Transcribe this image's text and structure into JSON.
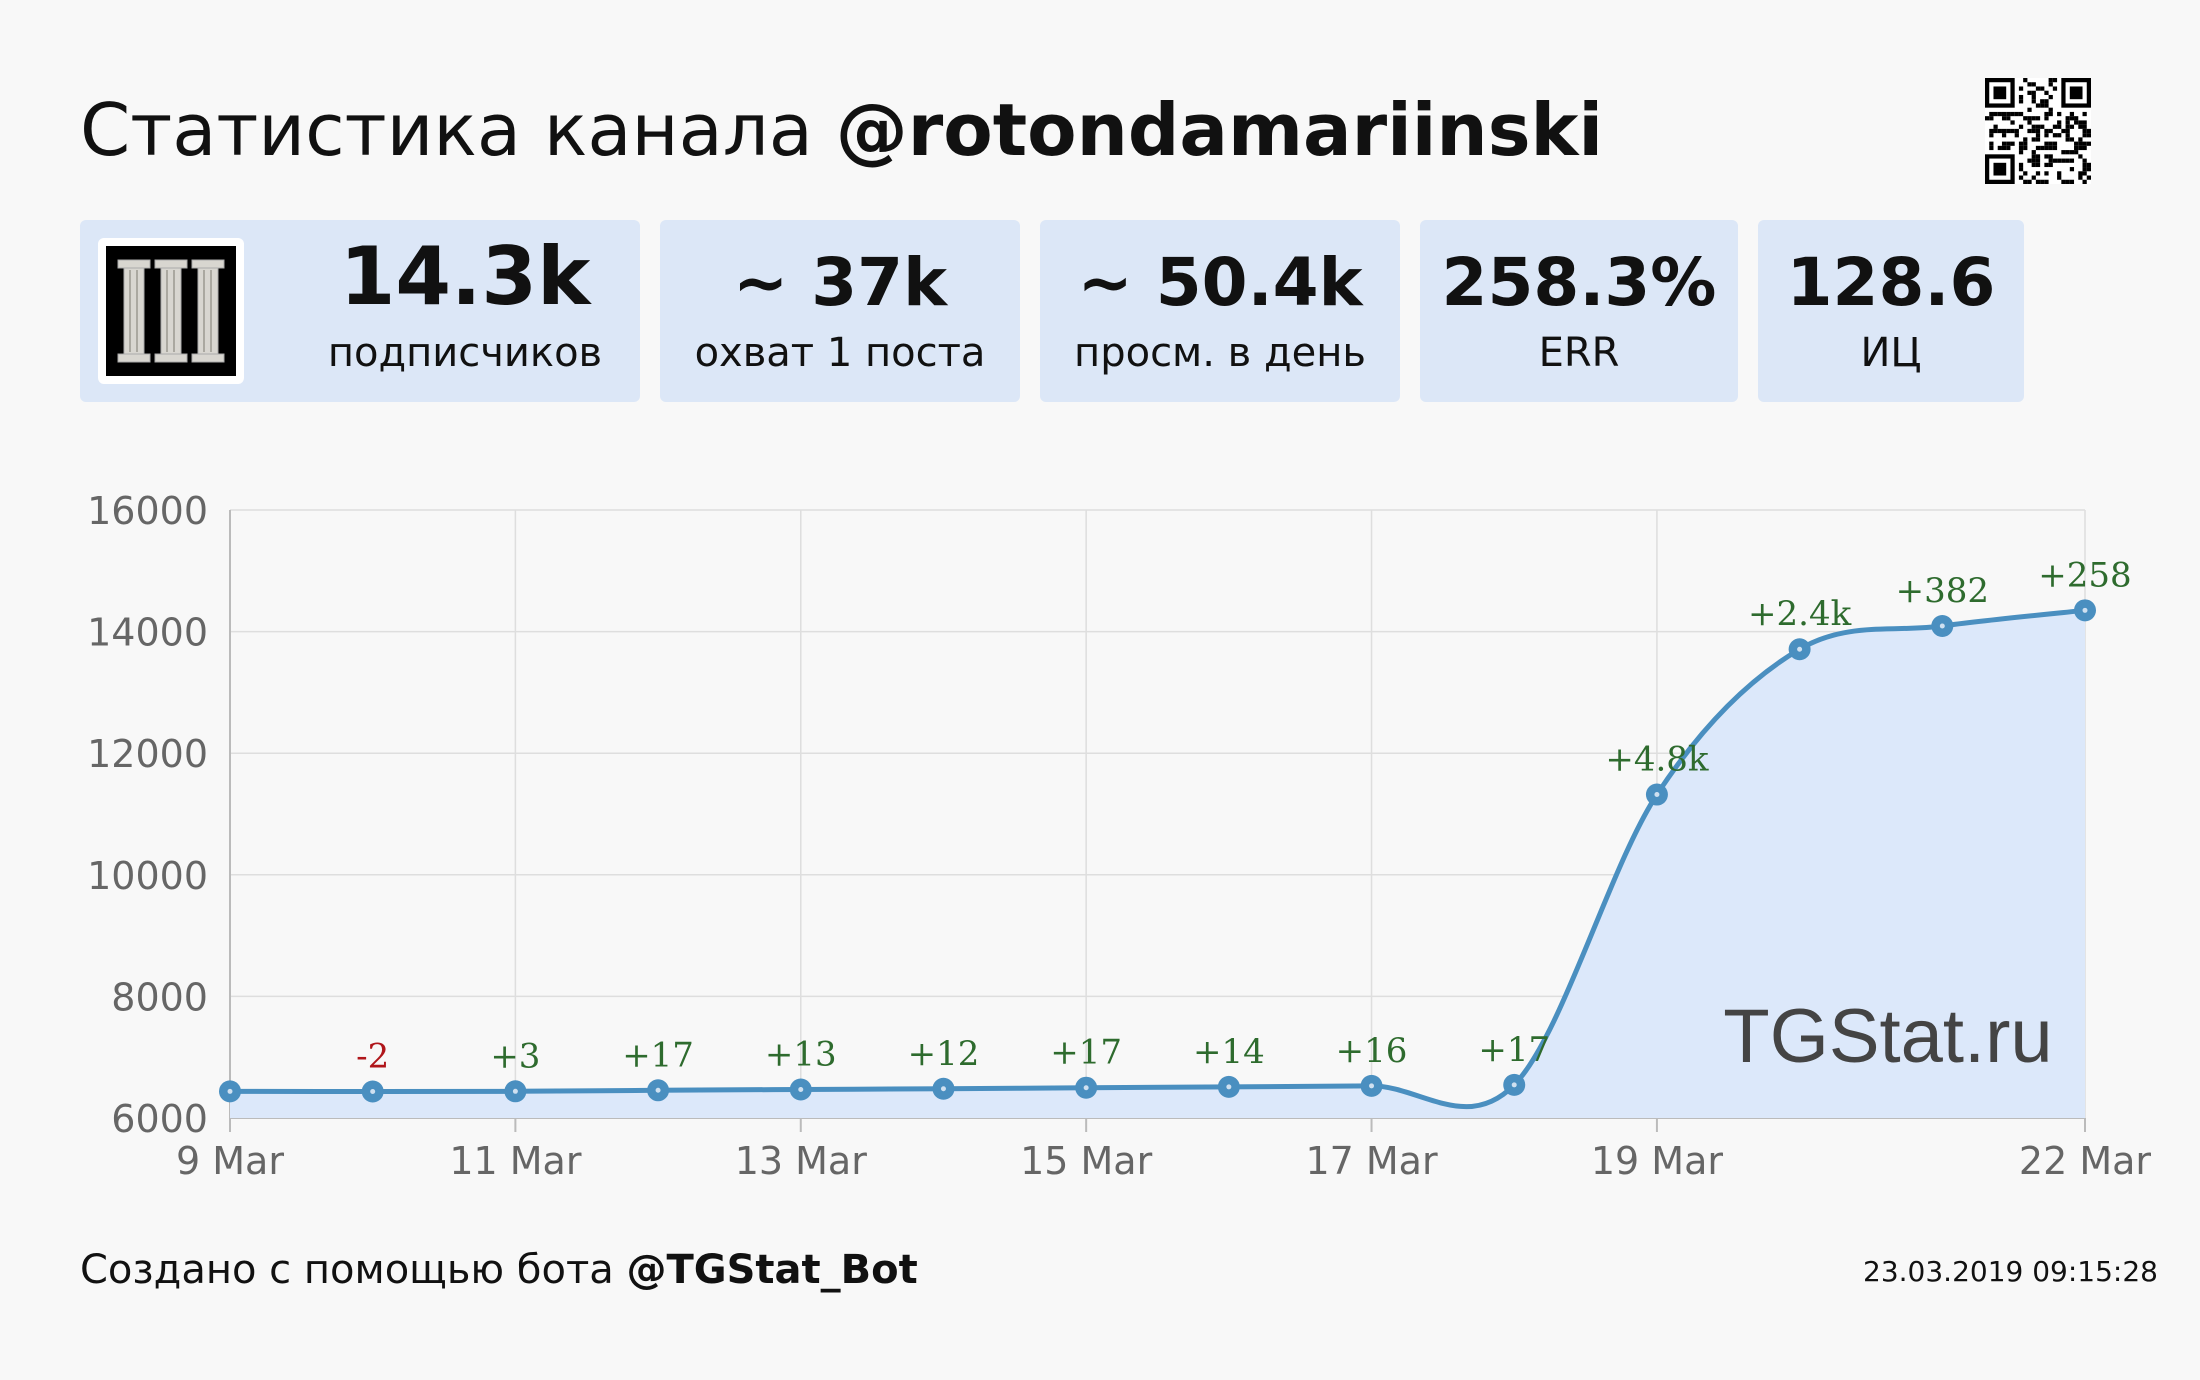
{
  "header": {
    "title_prefix": "Статистика канала ",
    "channel": "@rotondamariinski",
    "qr_icon": "qr-code-icon"
  },
  "stats": [
    {
      "value": "14.3k",
      "label": "подписчиков"
    },
    {
      "value": "~ 37k",
      "label": "охват 1 поста"
    },
    {
      "value": "~ 50.4k",
      "label": "просм. в день"
    },
    {
      "value": "258.3%",
      "label": "ERR"
    },
    {
      "value": "128.6",
      "label": "ИЦ"
    }
  ],
  "avatar": {
    "icon": "columns-avatar-icon"
  },
  "chart_data": {
    "type": "area",
    "x": [
      "2019-03-09",
      "2019-03-10",
      "2019-03-11",
      "2019-03-12",
      "2019-03-13",
      "2019-03-14",
      "2019-03-15",
      "2019-03-16",
      "2019-03-17",
      "2019-03-18",
      "2019-03-19",
      "2019-03-20",
      "2019-03-21",
      "2019-03-22"
    ],
    "values": [
      6438,
      6436,
      6439,
      6456,
      6469,
      6481,
      6498,
      6512,
      6528,
      6545,
      11320,
      13710,
      14092,
      14350
    ],
    "point_labels": [
      "",
      "-2",
      "+3",
      "+17",
      "+13",
      "+12",
      "+17",
      "+14",
      "+16",
      "+17",
      "+4.8k",
      "+2.4k",
      "+382",
      "+258"
    ],
    "label_colors": {
      "positive": "#2e6b2e",
      "negative": "#b0161b"
    },
    "x_ticks": [
      {
        "date": "2019-03-09",
        "label": "9 Mar"
      },
      {
        "date": "2019-03-11",
        "label": "11 Mar"
      },
      {
        "date": "2019-03-13",
        "label": "13 Mar"
      },
      {
        "date": "2019-03-15",
        "label": "15 Mar"
      },
      {
        "date": "2019-03-17",
        "label": "17 Mar"
      },
      {
        "date": "2019-03-19",
        "label": "19 Mar"
      },
      {
        "date": "2019-03-22",
        "label": "22 Mar"
      }
    ],
    "y_ticks": [
      6000,
      8000,
      10000,
      12000,
      14000,
      16000
    ],
    "ylim": [
      6000,
      16000
    ],
    "grid": true,
    "line_color": "#4a8fc0",
    "fill_color": "#dce8fa",
    "watermark": "TGStat.ru"
  },
  "footer": {
    "prefix": "Создано с помощью бота ",
    "bot": "@TGStat_Bot",
    "timestamp": "23.03.2019 09:15:28"
  }
}
